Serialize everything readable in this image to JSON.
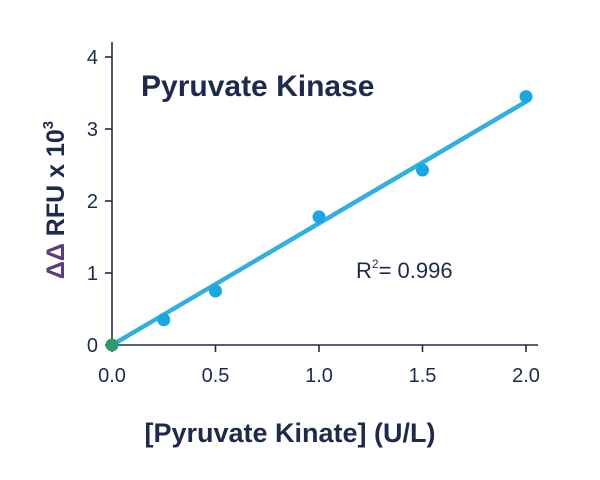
{
  "chart_data": {
    "type": "scatter",
    "title": "Pyruvate Kinase",
    "xlabel": "[Pyruvate Kinate] (U/L)",
    "ylabel": {
      "delta_symbols": "ΔΔ",
      "main": "RFU x 10",
      "superscript": "3"
    },
    "xlim": [
      0,
      2.2
    ],
    "ylim": [
      0,
      4.3
    ],
    "xticks": [
      0.0,
      0.5,
      1.0,
      1.5,
      2.0
    ],
    "xtick_labels": [
      "0.0",
      "0.5",
      "1.0",
      "1.5",
      "2.0"
    ],
    "yticks": [
      0,
      1,
      2,
      3,
      4
    ],
    "ytick_labels": [
      "0",
      "1",
      "2",
      "3",
      "4"
    ],
    "grid": false,
    "annotation": {
      "r_letter": "R",
      "superscript": "2",
      "value_text": "= 0.996"
    },
    "points": [
      {
        "x": 0.0,
        "y": 0.0
      },
      {
        "x": 0.25,
        "y": 0.35
      },
      {
        "x": 0.5,
        "y": 0.75
      },
      {
        "x": 1.0,
        "y": 1.78
      },
      {
        "x": 1.5,
        "y": 2.43
      },
      {
        "x": 2.0,
        "y": 3.45
      }
    ],
    "fit_line": {
      "x": [
        0.0,
        2.0
      ],
      "y": [
        0.0,
        3.38
      ]
    },
    "colors": {
      "point": "#1aa6e0",
      "origin_point": "#2e9b6d",
      "fit_line": "#32afe0",
      "axis": "#1e2a4a",
      "title": "#1e2a4a",
      "ylabel_delta": "#5a3d7a"
    }
  }
}
